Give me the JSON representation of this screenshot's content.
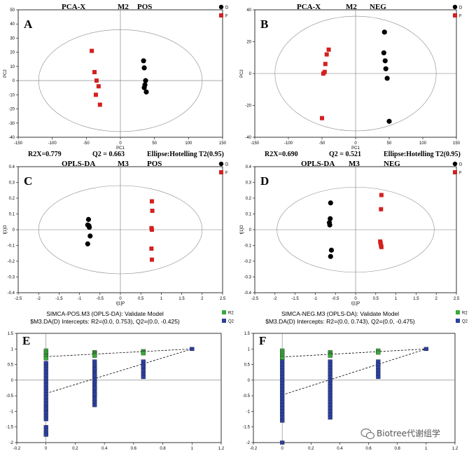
{
  "colors": {
    "D": "#000000",
    "F": "#d42020",
    "R2": "#3aa93a",
    "Q2": "#2c3f9e"
  },
  "watermark": "Biotree代谢组学",
  "chart_data": [
    {
      "letter": "A",
      "type": "scatter",
      "title_parts": [
        "PCA-X",
        "M2",
        "POS"
      ],
      "xlabel": "PC1",
      "ylabel": "PC2",
      "xlim": [
        -150,
        150
      ],
      "ylim": [
        -40,
        50
      ],
      "xticks": [
        -150,
        -100,
        -50,
        0,
        50,
        100,
        150
      ],
      "yticks": [
        -40,
        -30,
        -20,
        -10,
        0,
        10,
        20,
        30,
        40,
        50
      ],
      "ellipse": {
        "rx": 120,
        "ry": 36
      },
      "legend": [
        "D",
        "F"
      ],
      "stats": [
        "R2X=0.779",
        "Q2 = 0.663",
        "Ellipse:Hotelling T2(0.95)"
      ],
      "series": [
        {
          "name": "D",
          "x": [
            34,
            35,
            37,
            36,
            35,
            38
          ],
          "y": [
            14,
            9,
            0,
            -3,
            -5,
            -8
          ]
        },
        {
          "name": "F",
          "x": [
            -42,
            -38,
            -35,
            -32,
            -36,
            -30
          ],
          "y": [
            21,
            6,
            0,
            -4,
            -10,
            -17
          ]
        }
      ]
    },
    {
      "letter": "B",
      "type": "scatter",
      "title_parts": [
        "PCA-X",
        "M2",
        "NEG"
      ],
      "xlabel": "PC1",
      "ylabel": "PC2",
      "xlim": [
        -150,
        150
      ],
      "ylim": [
        -40,
        40
      ],
      "xticks": [
        -150,
        -100,
        -50,
        0,
        50,
        100,
        150
      ],
      "yticks": [
        -40,
        -20,
        0,
        20,
        40
      ],
      "ellipse": {
        "rx": 120,
        "ry": 36
      },
      "legend": [
        "D",
        "F"
      ],
      "stats": [
        "R2X=0.690",
        "Q2 = 0.521",
        "Ellipse:Hotelling T2(0.95)"
      ],
      "series": [
        {
          "name": "D",
          "x": [
            43,
            42,
            44,
            45,
            47,
            50
          ],
          "y": [
            26,
            13,
            8,
            3,
            -3,
            -30
          ]
        },
        {
          "name": "F",
          "x": [
            -40,
            -43,
            -45,
            -46,
            -48,
            -50
          ],
          "y": [
            15,
            12,
            6,
            1,
            0,
            -28
          ]
        }
      ]
    },
    {
      "letter": "C",
      "type": "scatter",
      "title_parts": [
        "OPLS-DA",
        "M3",
        "POS"
      ],
      "xlabel": "t[1]P",
      "ylabel": "t[1]O",
      "xlim": [
        -2.5,
        2.5
      ],
      "ylim": [
        -0.4,
        0.4
      ],
      "xticks": [
        -2.5,
        -2,
        -1.5,
        -1,
        -0.5,
        0,
        0.5,
        1,
        1.5,
        2,
        2.5
      ],
      "yticks": [
        -0.4,
        -0.3,
        -0.2,
        -0.1,
        0,
        0.1,
        0.2,
        0.3,
        0.4
      ],
      "ellipse": {
        "rx": 2.0,
        "ry": 0.28
      },
      "legend": [
        "D",
        "F"
      ],
      "stats": [],
      "series": [
        {
          "name": "D",
          "x": [
            -0.78,
            -0.8,
            -0.77,
            -0.76,
            -0.74,
            -0.8
          ],
          "y": [
            0.065,
            0.03,
            0.025,
            0.015,
            -0.04,
            -0.09
          ]
        },
        {
          "name": "F",
          "x": [
            0.77,
            0.78,
            0.76,
            0.77,
            0.76,
            0.77
          ],
          "y": [
            0.18,
            0.12,
            0.01,
            0.0,
            -0.12,
            -0.19
          ]
        }
      ]
    },
    {
      "letter": "D",
      "type": "scatter",
      "title_parts": [
        "OPLS-DA",
        "M3",
        "NEG"
      ],
      "xlabel": "t[1]P",
      "ylabel": "t[1]O",
      "xlim": [
        -2.5,
        2.5
      ],
      "ylim": [
        -0.4,
        0.4
      ],
      "xticks": [
        -2.5,
        -2,
        -1.5,
        -1,
        -0.5,
        0,
        0.5,
        1,
        1.5,
        2,
        2.5
      ],
      "yticks": [
        -0.4,
        -0.3,
        -0.2,
        -0.1,
        0,
        0.1,
        0.2,
        0.3,
        0.4
      ],
      "ellipse": {
        "rx": 1.95,
        "ry": 0.27
      },
      "legend": [
        "D",
        "F"
      ],
      "stats": [],
      "series": [
        {
          "name": "D",
          "x": [
            -0.62,
            -0.63,
            -0.65,
            -0.64,
            -0.6,
            -0.62
          ],
          "y": [
            0.17,
            0.07,
            0.045,
            0.03,
            -0.13,
            -0.17
          ]
        },
        {
          "name": "F",
          "x": [
            0.64,
            0.63,
            0.61,
            0.62,
            0.63,
            0.64
          ],
          "y": [
            0.22,
            0.13,
            -0.075,
            -0.085,
            -0.1,
            -0.11
          ]
        }
      ]
    },
    {
      "letter": "E",
      "type": "scatter",
      "title_lines": [
        "SIMCA-POS.M3 (OPLS-DA): Validate Model",
        "$M3.DA(D) Intercepts: R2=(0.0, 0.753), Q2=(0.0, -0.425)"
      ],
      "xlim": [
        -0.2,
        1.2
      ],
      "ylim": [
        -2,
        1.5
      ],
      "xticks": [
        -0.2,
        0,
        0.2,
        0.4,
        0.6,
        0.8,
        1,
        1.2
      ],
      "yticks": [
        -2,
        -1.5,
        -1,
        -0.5,
        0,
        0.5,
        1,
        1.5
      ],
      "legend": [
        "R2",
        "Q2"
      ],
      "intercepts": {
        "R2": 0.753,
        "Q2": -0.425
      },
      "series": [
        {
          "name": "R2",
          "x": [
            0,
            0,
            0,
            0,
            0,
            0,
            0,
            0,
            0.333,
            0.333,
            0.333,
            0.333,
            0.333,
            0.333,
            0.667,
            0.667,
            0.667,
            0.667,
            1
          ],
          "y": [
            0.95,
            0.9,
            0.85,
            0.8,
            0.78,
            0.75,
            0.72,
            0.7,
            0.9,
            0.87,
            0.84,
            0.82,
            0.8,
            0.78,
            0.93,
            0.9,
            0.88,
            0.86,
            1.0
          ]
        },
        {
          "name": "Q2",
          "x": [
            0,
            0,
            0,
            0,
            0,
            0,
            0,
            0,
            0,
            0,
            0,
            0,
            0,
            0,
            0,
            0,
            0,
            0,
            0,
            0,
            0,
            0,
            0,
            0,
            0.333,
            0.333,
            0.333,
            0.333,
            0.333,
            0.333,
            0.333,
            0.333,
            0.333,
            0.333,
            0.333,
            0.333,
            0.333,
            0.333,
            0.333,
            0.333,
            0.333,
            0.333,
            0.333,
            0.333,
            0.667,
            0.667,
            0.667,
            0.667,
            0.667,
            0.667,
            0.667,
            1
          ],
          "y": [
            0.55,
            0.45,
            0.35,
            0.25,
            0.15,
            0.05,
            -0.05,
            -0.15,
            -0.25,
            -0.35,
            -0.45,
            -0.55,
            -0.65,
            -0.75,
            -0.85,
            -0.95,
            -1.05,
            -1.15,
            -1.25,
            -1.5,
            -1.6,
            -1.7,
            -1.75,
            -0.9,
            0.6,
            0.5,
            0.4,
            0.3,
            0.2,
            0.1,
            0.0,
            -0.1,
            -0.2,
            -0.3,
            -0.4,
            -0.5,
            -0.6,
            -0.7,
            -0.8,
            0.15,
            -0.25,
            -0.45,
            0.35,
            -0.05,
            0.6,
            0.5,
            0.4,
            0.3,
            0.2,
            0.1,
            0.45,
            1.0
          ]
        }
      ]
    },
    {
      "letter": "F",
      "type": "scatter",
      "title_lines": [
        "SIMCA-NEG.M3 (OPLS-DA): Validate Model",
        "$M3.DA(D) Intercepts: R2=(0.0, 0.743), Q2=(0.0, -0.475)"
      ],
      "xlim": [
        -0.2,
        1.2
      ],
      "ylim": [
        -2,
        1.5
      ],
      "xticks": [
        -0.2,
        0,
        0.2,
        0.4,
        0.6,
        0.8,
        1,
        1.2
      ],
      "yticks": [
        -2,
        -1.5,
        -1,
        -0.5,
        0,
        0.5,
        1,
        1.5
      ],
      "legend": [
        "R2",
        "Q2"
      ],
      "intercepts": {
        "R2": 0.743,
        "Q2": -0.475
      },
      "series": [
        {
          "name": "R2",
          "x": [
            0,
            0,
            0,
            0,
            0,
            0,
            0,
            0.333,
            0.333,
            0.333,
            0.333,
            0.333,
            0.667,
            0.667,
            0.667,
            1
          ],
          "y": [
            0.95,
            0.9,
            0.85,
            0.8,
            0.75,
            0.72,
            0.7,
            0.9,
            0.86,
            0.83,
            0.8,
            0.78,
            0.95,
            0.9,
            0.88,
            1.0
          ]
        },
        {
          "name": "Q2",
          "x": [
            0,
            0,
            0,
            0,
            0,
            0,
            0,
            0,
            0,
            0,
            0,
            0,
            0,
            0,
            0,
            0,
            0,
            0,
            0,
            0,
            0,
            0.333,
            0.333,
            0.333,
            0.333,
            0.333,
            0.333,
            0.333,
            0.333,
            0.333,
            0.333,
            0.333,
            0.333,
            0.333,
            0.333,
            0.333,
            0.333,
            0.333,
            0.333,
            0.333,
            0.667,
            0.667,
            0.667,
            0.667,
            0.667,
            0.667,
            1
          ],
          "y": [
            0.6,
            0.5,
            0.4,
            0.3,
            0.2,
            0.1,
            0.0,
            -0.1,
            -0.2,
            -0.3,
            -0.4,
            -0.5,
            -0.6,
            -0.7,
            -0.8,
            -0.9,
            -1.0,
            -1.1,
            -1.2,
            -1.3,
            -2.0,
            0.6,
            0.5,
            0.4,
            0.3,
            0.2,
            0.1,
            0.0,
            -0.1,
            -0.2,
            -0.3,
            -0.4,
            -0.5,
            -0.6,
            -0.7,
            -0.8,
            -0.9,
            -1.0,
            -1.1,
            -1.2,
            0.6,
            0.5,
            0.4,
            0.3,
            0.2,
            0.1,
            1.0
          ]
        }
      ]
    }
  ]
}
